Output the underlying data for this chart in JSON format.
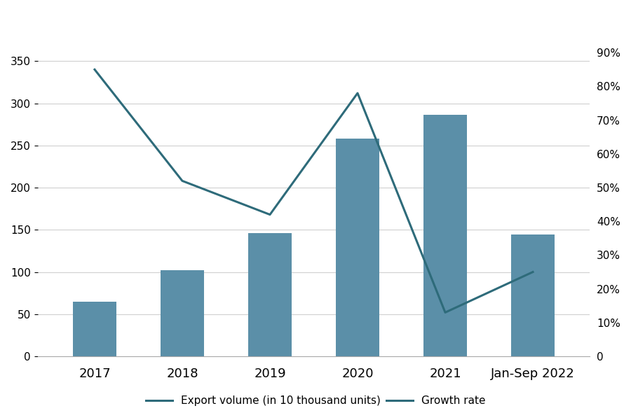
{
  "categories": [
    "2017",
    "2018",
    "2019",
    "2020",
    "2021",
    "Jan-Sep 2022"
  ],
  "bar_values": [
    65,
    102,
    146,
    258,
    286,
    144
  ],
  "pct_values": [
    85,
    52,
    42,
    78,
    13,
    25
  ],
  "bar_color": "#5b8fa8",
  "line_color": "#2e6b7a",
  "ylim_left": [
    0,
    400
  ],
  "ylim_right": [
    0,
    100
  ],
  "left_ticks": [
    0,
    50,
    100,
    150,
    200,
    250,
    300,
    350
  ],
  "right_ticks": [
    0,
    10,
    20,
    30,
    40,
    50,
    60,
    70,
    80,
    90
  ],
  "legend_label_bar": "Export volume (in 10 thousand units)",
  "legend_label_line": "Growth rate",
  "background_color": "#ffffff",
  "grid_color": "#d0d0d0"
}
